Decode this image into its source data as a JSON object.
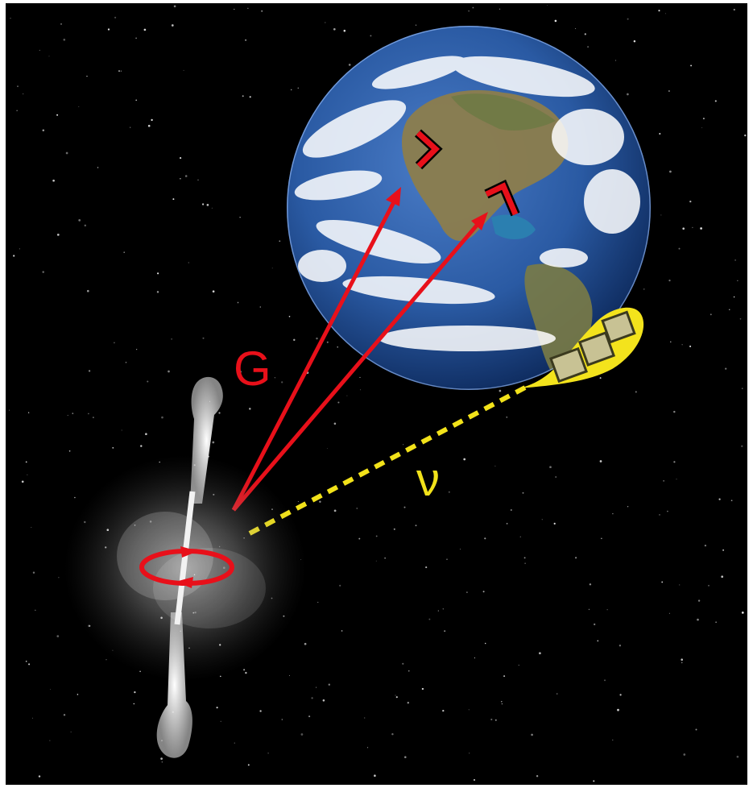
{
  "labels": {
    "gravitational_wave": "G",
    "neutrino": "ν"
  },
  "colors": {
    "background": "#000000",
    "frame": "#ffffff",
    "gravitational_wave": "#e8101a",
    "neutrino": "#f2e21a",
    "detector_bubble": "#f3e31c",
    "detector_box": "#c8c294",
    "ocean": "#2c5aa3",
    "land": "#8a7a4a",
    "clouds": "#ffffff",
    "jet": "#f2f2f2",
    "rotation_marker": "#e8101a"
  },
  "icons": {
    "source": "rotating-source-with-jets",
    "earth": "earth-globe-icon",
    "ground_detector": "l-shaped-interferometer-icon",
    "satellite_detector": "cube-detector-icon"
  }
}
